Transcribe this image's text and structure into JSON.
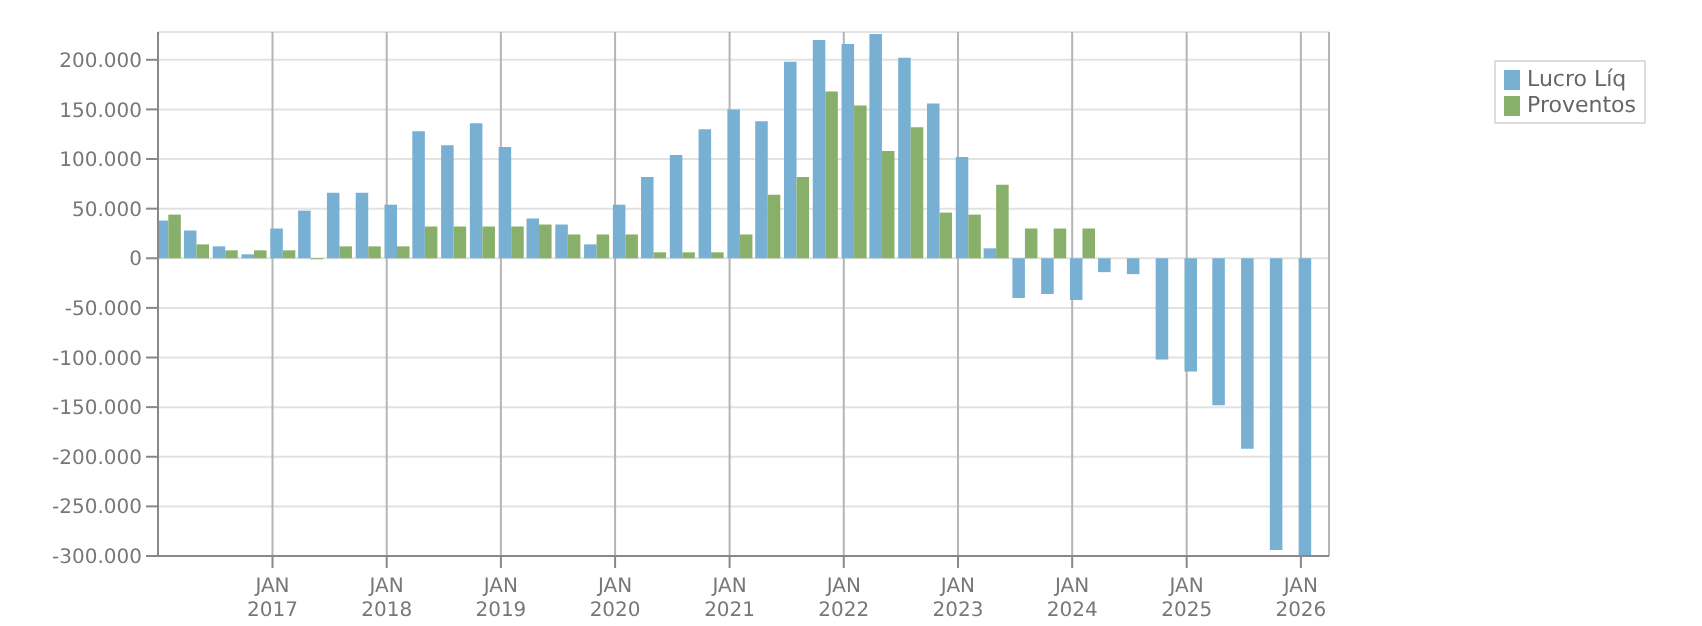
{
  "chart_data": {
    "type": "bar",
    "x": [
      "2016-02",
      "2016-05",
      "2016-08",
      "2016-11",
      "2017-02",
      "2017-05",
      "2017-08",
      "2017-11",
      "2018-02",
      "2018-05",
      "2018-08",
      "2018-11",
      "2019-02",
      "2019-05",
      "2019-08",
      "2019-11",
      "2020-02",
      "2020-05",
      "2020-08",
      "2020-11",
      "2021-02",
      "2021-05",
      "2021-08",
      "2021-11",
      "2022-02",
      "2022-05",
      "2022-08",
      "2022-11",
      "2023-02",
      "2023-05",
      "2023-08",
      "2023-11",
      "2024-02",
      "2024-05",
      "2024-08",
      "2024-11",
      "2025-02",
      "2025-05",
      "2025-08",
      "2025-11",
      "2026-02"
    ],
    "series": [
      {
        "name": "Lucro Líq",
        "color": "#77b0d2",
        "values": [
          38000,
          28000,
          12000,
          4000,
          30000,
          48000,
          66000,
          66000,
          54000,
          128000,
          114000,
          136000,
          112000,
          40000,
          34000,
          14000,
          54000,
          82000,
          104000,
          130000,
          150000,
          138000,
          198000,
          220000,
          216000,
          226000,
          202000,
          156000,
          102000,
          10000,
          -40000,
          -36000,
          -42000,
          -14000,
          -16000,
          -102000,
          -114000,
          -148000,
          -192000,
          -294000,
          -300000
        ]
      },
      {
        "name": "Proventos",
        "color": "#89b06a",
        "values": [
          44000,
          14000,
          8000,
          8000,
          8000,
          -1000,
          12000,
          12000,
          12000,
          32000,
          32000,
          32000,
          32000,
          34000,
          24000,
          24000,
          24000,
          6000,
          6000,
          6000,
          24000,
          64000,
          82000,
          168000,
          154000,
          108000,
          132000,
          46000,
          44000,
          74000,
          30000,
          30000,
          30000,
          0,
          0,
          0,
          0,
          0,
          0,
          0,
          0
        ]
      }
    ],
    "xlim": [
      "2016-01",
      "2026-04"
    ],
    "xticks": [
      {
        "value": "2017-01",
        "label": "JAN 2017"
      },
      {
        "value": "2018-01",
        "label": "JAN 2018"
      },
      {
        "value": "2019-01",
        "label": "JAN 2019"
      },
      {
        "value": "2020-01",
        "label": "JAN 2020"
      },
      {
        "value": "2021-01",
        "label": "JAN 2021"
      },
      {
        "value": "2022-01",
        "label": "JAN 2022"
      },
      {
        "value": "2023-01",
        "label": "JAN 2023"
      },
      {
        "value": "2024-01",
        "label": "JAN 2024"
      },
      {
        "value": "2025-01",
        "label": "JAN 2025"
      },
      {
        "value": "2026-01",
        "label": "JAN 2026"
      }
    ],
    "ylim": [
      -300000,
      228000
    ],
    "yticks": [
      {
        "value": -300000,
        "label": "-300.000"
      },
      {
        "value": -250000,
        "label": "-250.000"
      },
      {
        "value": -200000,
        "label": "-200.000"
      },
      {
        "value": -150000,
        "label": "-150.000"
      },
      {
        "value": -100000,
        "label": "-100.000"
      },
      {
        "value": -50000,
        "label": "-50.000"
      },
      0,
      {
        "value": 50000,
        "label": "50.000"
      },
      {
        "value": 100000,
        "label": "100.000"
      },
      {
        "value": 150000,
        "label": "150.000"
      },
      {
        "value": 200000,
        "label": "200.000"
      }
    ],
    "grid": true,
    "legend": "top right"
  }
}
